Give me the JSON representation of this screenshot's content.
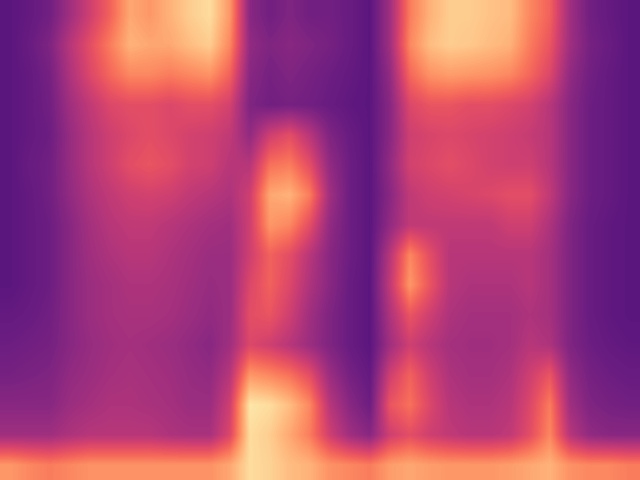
{
  "chart_data": {
    "type": "heatmap",
    "tick_labels": false,
    "cells": [
      [
        0.3,
        0.32,
        0.35,
        0.45,
        0.55,
        0.65,
        0.78,
        0.75,
        0.8,
        0.85,
        0.88,
        0.75,
        0.4,
        0.35,
        0.38,
        0.35,
        0.35,
        0.33,
        0.3,
        0.45,
        0.7,
        0.8,
        0.85,
        0.85,
        0.83,
        0.82,
        0.72,
        0.65,
        0.45,
        0.35,
        0.32,
        0.3
      ],
      [
        0.3,
        0.33,
        0.38,
        0.5,
        0.6,
        0.7,
        0.8,
        0.78,
        0.78,
        0.82,
        0.85,
        0.72,
        0.42,
        0.38,
        0.4,
        0.38,
        0.36,
        0.33,
        0.3,
        0.45,
        0.72,
        0.82,
        0.85,
        0.84,
        0.82,
        0.8,
        0.7,
        0.62,
        0.45,
        0.36,
        0.33,
        0.3
      ],
      [
        0.3,
        0.32,
        0.36,
        0.48,
        0.58,
        0.66,
        0.72,
        0.72,
        0.7,
        0.72,
        0.74,
        0.65,
        0.4,
        0.36,
        0.38,
        0.36,
        0.34,
        0.32,
        0.3,
        0.42,
        0.66,
        0.74,
        0.76,
        0.75,
        0.74,
        0.72,
        0.66,
        0.58,
        0.42,
        0.35,
        0.32,
        0.3
      ],
      [
        0.3,
        0.32,
        0.35,
        0.45,
        0.52,
        0.58,
        0.6,
        0.6,
        0.58,
        0.6,
        0.6,
        0.56,
        0.38,
        0.35,
        0.36,
        0.35,
        0.33,
        0.31,
        0.3,
        0.4,
        0.58,
        0.62,
        0.62,
        0.6,
        0.6,
        0.58,
        0.56,
        0.5,
        0.4,
        0.34,
        0.32,
        0.3
      ],
      [
        0.3,
        0.32,
        0.34,
        0.43,
        0.5,
        0.55,
        0.58,
        0.6,
        0.58,
        0.56,
        0.55,
        0.52,
        0.42,
        0.55,
        0.6,
        0.5,
        0.38,
        0.33,
        0.3,
        0.4,
        0.55,
        0.57,
        0.58,
        0.57,
        0.56,
        0.55,
        0.53,
        0.5,
        0.4,
        0.34,
        0.32,
        0.3
      ],
      [
        0.3,
        0.33,
        0.35,
        0.43,
        0.5,
        0.55,
        0.6,
        0.62,
        0.6,
        0.56,
        0.55,
        0.5,
        0.5,
        0.68,
        0.7,
        0.6,
        0.42,
        0.34,
        0.3,
        0.42,
        0.56,
        0.58,
        0.6,
        0.58,
        0.56,
        0.55,
        0.55,
        0.5,
        0.4,
        0.34,
        0.32,
        0.3
      ],
      [
        0.3,
        0.32,
        0.35,
        0.42,
        0.48,
        0.52,
        0.55,
        0.56,
        0.55,
        0.52,
        0.5,
        0.48,
        0.55,
        0.78,
        0.8,
        0.7,
        0.45,
        0.34,
        0.3,
        0.4,
        0.52,
        0.55,
        0.56,
        0.57,
        0.58,
        0.6,
        0.6,
        0.52,
        0.4,
        0.34,
        0.32,
        0.3
      ],
      [
        0.3,
        0.32,
        0.34,
        0.4,
        0.46,
        0.5,
        0.52,
        0.52,
        0.5,
        0.48,
        0.46,
        0.45,
        0.55,
        0.75,
        0.72,
        0.6,
        0.42,
        0.34,
        0.3,
        0.42,
        0.52,
        0.52,
        0.52,
        0.52,
        0.52,
        0.55,
        0.55,
        0.48,
        0.38,
        0.33,
        0.31,
        0.3
      ],
      [
        0.3,
        0.32,
        0.34,
        0.4,
        0.45,
        0.48,
        0.5,
        0.5,
        0.48,
        0.46,
        0.44,
        0.44,
        0.55,
        0.65,
        0.6,
        0.5,
        0.4,
        0.34,
        0.3,
        0.5,
        0.72,
        0.6,
        0.5,
        0.5,
        0.5,
        0.5,
        0.5,
        0.46,
        0.38,
        0.33,
        0.31,
        0.3
      ],
      [
        0.3,
        0.32,
        0.34,
        0.4,
        0.44,
        0.46,
        0.48,
        0.48,
        0.47,
        0.45,
        0.43,
        0.44,
        0.58,
        0.65,
        0.58,
        0.48,
        0.4,
        0.33,
        0.3,
        0.52,
        0.75,
        0.62,
        0.5,
        0.48,
        0.48,
        0.48,
        0.5,
        0.46,
        0.38,
        0.33,
        0.31,
        0.3
      ],
      [
        0.32,
        0.33,
        0.35,
        0.4,
        0.44,
        0.46,
        0.47,
        0.47,
        0.46,
        0.44,
        0.42,
        0.44,
        0.6,
        0.62,
        0.55,
        0.45,
        0.38,
        0.33,
        0.3,
        0.48,
        0.62,
        0.55,
        0.48,
        0.46,
        0.46,
        0.46,
        0.48,
        0.46,
        0.38,
        0.33,
        0.31,
        0.3
      ],
      [
        0.34,
        0.35,
        0.36,
        0.4,
        0.43,
        0.45,
        0.46,
        0.45,
        0.44,
        0.42,
        0.4,
        0.45,
        0.58,
        0.55,
        0.5,
        0.44,
        0.38,
        0.33,
        0.3,
        0.45,
        0.55,
        0.5,
        0.46,
        0.45,
        0.45,
        0.46,
        0.5,
        0.48,
        0.38,
        0.34,
        0.32,
        0.31
      ],
      [
        0.36,
        0.37,
        0.38,
        0.42,
        0.44,
        0.46,
        0.47,
        0.46,
        0.45,
        0.43,
        0.42,
        0.5,
        0.75,
        0.72,
        0.68,
        0.6,
        0.44,
        0.36,
        0.32,
        0.55,
        0.65,
        0.55,
        0.48,
        0.46,
        0.46,
        0.48,
        0.55,
        0.62,
        0.42,
        0.36,
        0.34,
        0.33
      ],
      [
        0.4,
        0.4,
        0.4,
        0.44,
        0.46,
        0.48,
        0.48,
        0.47,
        0.46,
        0.44,
        0.44,
        0.55,
        0.9,
        0.88,
        0.82,
        0.72,
        0.5,
        0.4,
        0.34,
        0.62,
        0.68,
        0.58,
        0.5,
        0.48,
        0.48,
        0.5,
        0.58,
        0.7,
        0.45,
        0.38,
        0.36,
        0.35
      ],
      [
        0.45,
        0.45,
        0.45,
        0.48,
        0.5,
        0.5,
        0.5,
        0.5,
        0.48,
        0.47,
        0.47,
        0.58,
        0.88,
        0.85,
        0.78,
        0.7,
        0.55,
        0.45,
        0.4,
        0.55,
        0.6,
        0.55,
        0.52,
        0.5,
        0.5,
        0.52,
        0.6,
        0.72,
        0.5,
        0.42,
        0.4,
        0.4
      ],
      [
        0.75,
        0.72,
        0.7,
        0.72,
        0.74,
        0.74,
        0.74,
        0.74,
        0.74,
        0.74,
        0.74,
        0.78,
        0.88,
        0.86,
        0.82,
        0.8,
        0.74,
        0.72,
        0.7,
        0.76,
        0.78,
        0.76,
        0.75,
        0.75,
        0.75,
        0.76,
        0.78,
        0.8,
        0.74,
        0.72,
        0.72,
        0.7
      ]
    ]
  }
}
